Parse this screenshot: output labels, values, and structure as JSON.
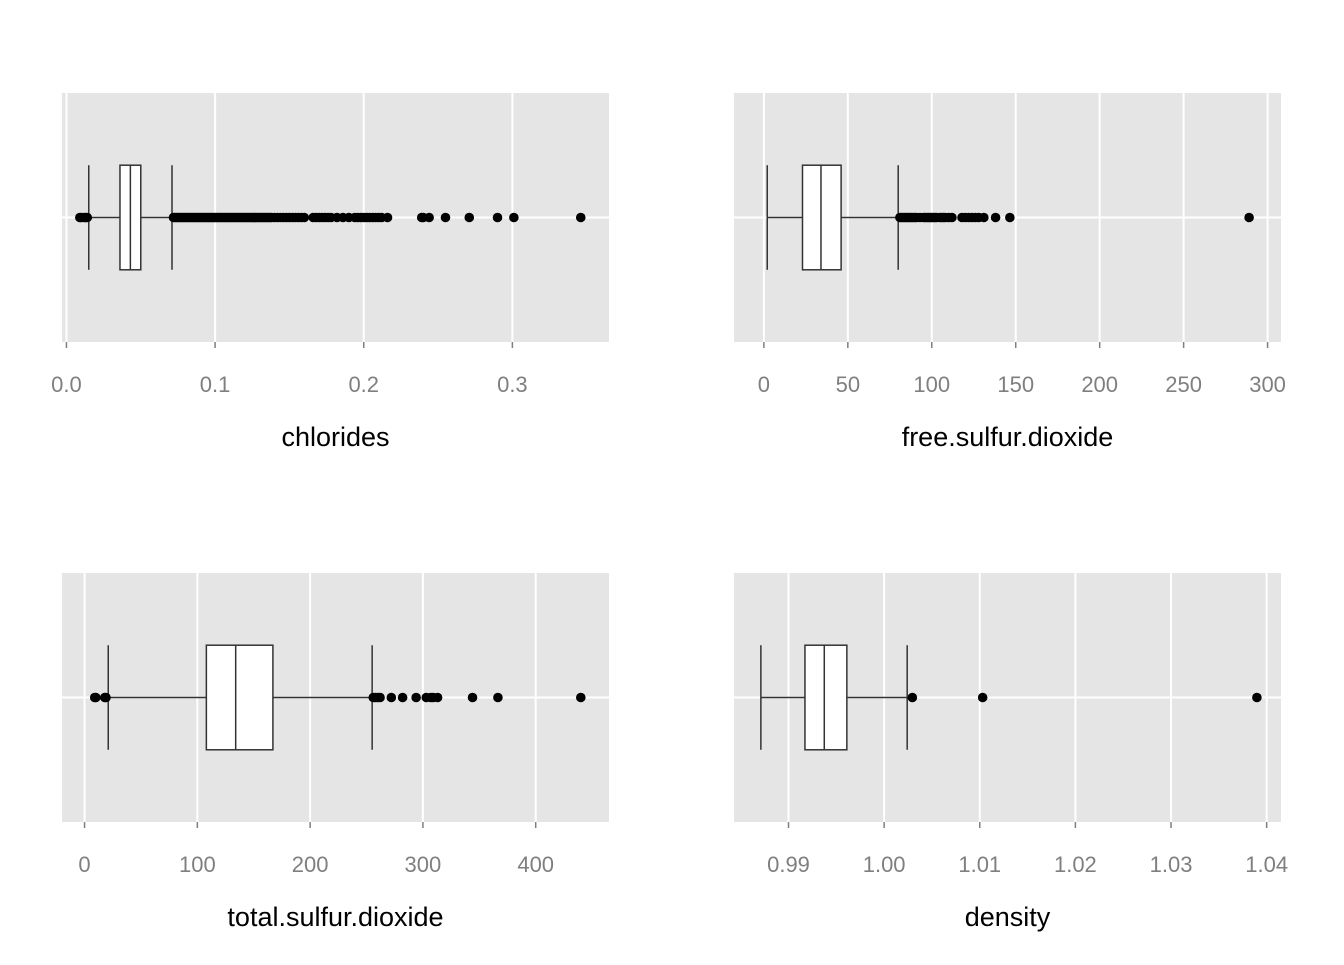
{
  "colors": {
    "panel_background": "#e5e5e5",
    "grid_line": "#ffffff",
    "box_fill": "#ffffff",
    "box_stroke": "#333333",
    "outlier": "#000000",
    "tick_label": "#7f7f7f",
    "axis_title": "#000000"
  },
  "chart_data": [
    {
      "type": "boxplot",
      "orientation": "horizontal",
      "xlabel": "chlorides",
      "xlim": [
        -0.003,
        0.365
      ],
      "ticks": [
        0.0,
        0.1,
        0.2,
        0.3
      ],
      "tick_labels": [
        "0.0",
        "0.1",
        "0.2",
        "0.3"
      ],
      "grid": true,
      "box": {
        "whisker_low": 0.015,
        "q1": 0.036,
        "median": 0.043,
        "q3": 0.05,
        "whisker_high": 0.071
      },
      "outliers": [
        0.009,
        0.01,
        0.012,
        0.013,
        0.014,
        0.072,
        0.073,
        0.074,
        0.075,
        0.076,
        0.077,
        0.078,
        0.079,
        0.08,
        0.081,
        0.082,
        0.083,
        0.084,
        0.085,
        0.086,
        0.087,
        0.088,
        0.089,
        0.09,
        0.091,
        0.092,
        0.093,
        0.094,
        0.095,
        0.096,
        0.097,
        0.098,
        0.099,
        0.1,
        0.101,
        0.102,
        0.103,
        0.104,
        0.105,
        0.106,
        0.107,
        0.108,
        0.109,
        0.11,
        0.111,
        0.112,
        0.113,
        0.114,
        0.115,
        0.116,
        0.117,
        0.118,
        0.119,
        0.12,
        0.121,
        0.122,
        0.123,
        0.124,
        0.125,
        0.126,
        0.127,
        0.128,
        0.129,
        0.13,
        0.131,
        0.132,
        0.133,
        0.134,
        0.135,
        0.136,
        0.137,
        0.138,
        0.14,
        0.142,
        0.144,
        0.146,
        0.148,
        0.15,
        0.152,
        0.154,
        0.156,
        0.158,
        0.16,
        0.166,
        0.168,
        0.17,
        0.172,
        0.174,
        0.176,
        0.178,
        0.182,
        0.186,
        0.19,
        0.194,
        0.196,
        0.198,
        0.2,
        0.202,
        0.204,
        0.206,
        0.208,
        0.21,
        0.212,
        0.216,
        0.239,
        0.24,
        0.244,
        0.255,
        0.271,
        0.29,
        0.301,
        0.346
      ]
    },
    {
      "type": "boxplot",
      "orientation": "horizontal",
      "xlabel": "free.sulfur.dioxide",
      "xlim": [
        -17.8,
        308
      ],
      "ticks": [
        0,
        50,
        100,
        150,
        200,
        250,
        300
      ],
      "tick_labels": [
        "0",
        "50",
        "100",
        "150",
        "200",
        "250",
        "300"
      ],
      "grid": true,
      "box": {
        "whisker_low": 2,
        "q1": 23,
        "median": 34,
        "q3": 46,
        "whisker_high": 80
      },
      "outliers": [
        81,
        82,
        83,
        84,
        85,
        86,
        87,
        88,
        89,
        90,
        91,
        93,
        95,
        96,
        97,
        98,
        99,
        100,
        101,
        102,
        103,
        105,
        106,
        107,
        108,
        110,
        112,
        118,
        120,
        122,
        124,
        126,
        128,
        131,
        138,
        146.5,
        289
      ]
    },
    {
      "type": "boxplot",
      "orientation": "horizontal",
      "xlabel": "total.sulfur.dioxide",
      "xlim": [
        -20,
        465
      ],
      "ticks": [
        0,
        100,
        200,
        300,
        400
      ],
      "tick_labels": [
        "0",
        "100",
        "200",
        "300",
        "400"
      ],
      "grid": true,
      "box": {
        "whisker_low": 21,
        "q1": 108,
        "median": 134,
        "q3": 167,
        "whisker_high": 255
      },
      "outliers": [
        9,
        10,
        18,
        19,
        256,
        258,
        260,
        262,
        272,
        282,
        294,
        303,
        307,
        309,
        313,
        344,
        366.5,
        440
      ]
    },
    {
      "type": "boxplot",
      "orientation": "horizontal",
      "xlabel": "density",
      "xlim": [
        0.9843,
        1.0415
      ],
      "ticks": [
        0.99,
        1.0,
        1.01,
        1.02,
        1.03,
        1.04
      ],
      "tick_labels": [
        "0.99",
        "1.00",
        "1.01",
        "1.02",
        "1.03",
        "1.04"
      ],
      "grid": true,
      "box": {
        "whisker_low": 0.98711,
        "q1": 0.99172,
        "median": 0.99374,
        "q3": 0.9961,
        "whisker_high": 1.00241
      },
      "outliers": [
        1.00295,
        1.0103,
        1.03898
      ]
    }
  ]
}
